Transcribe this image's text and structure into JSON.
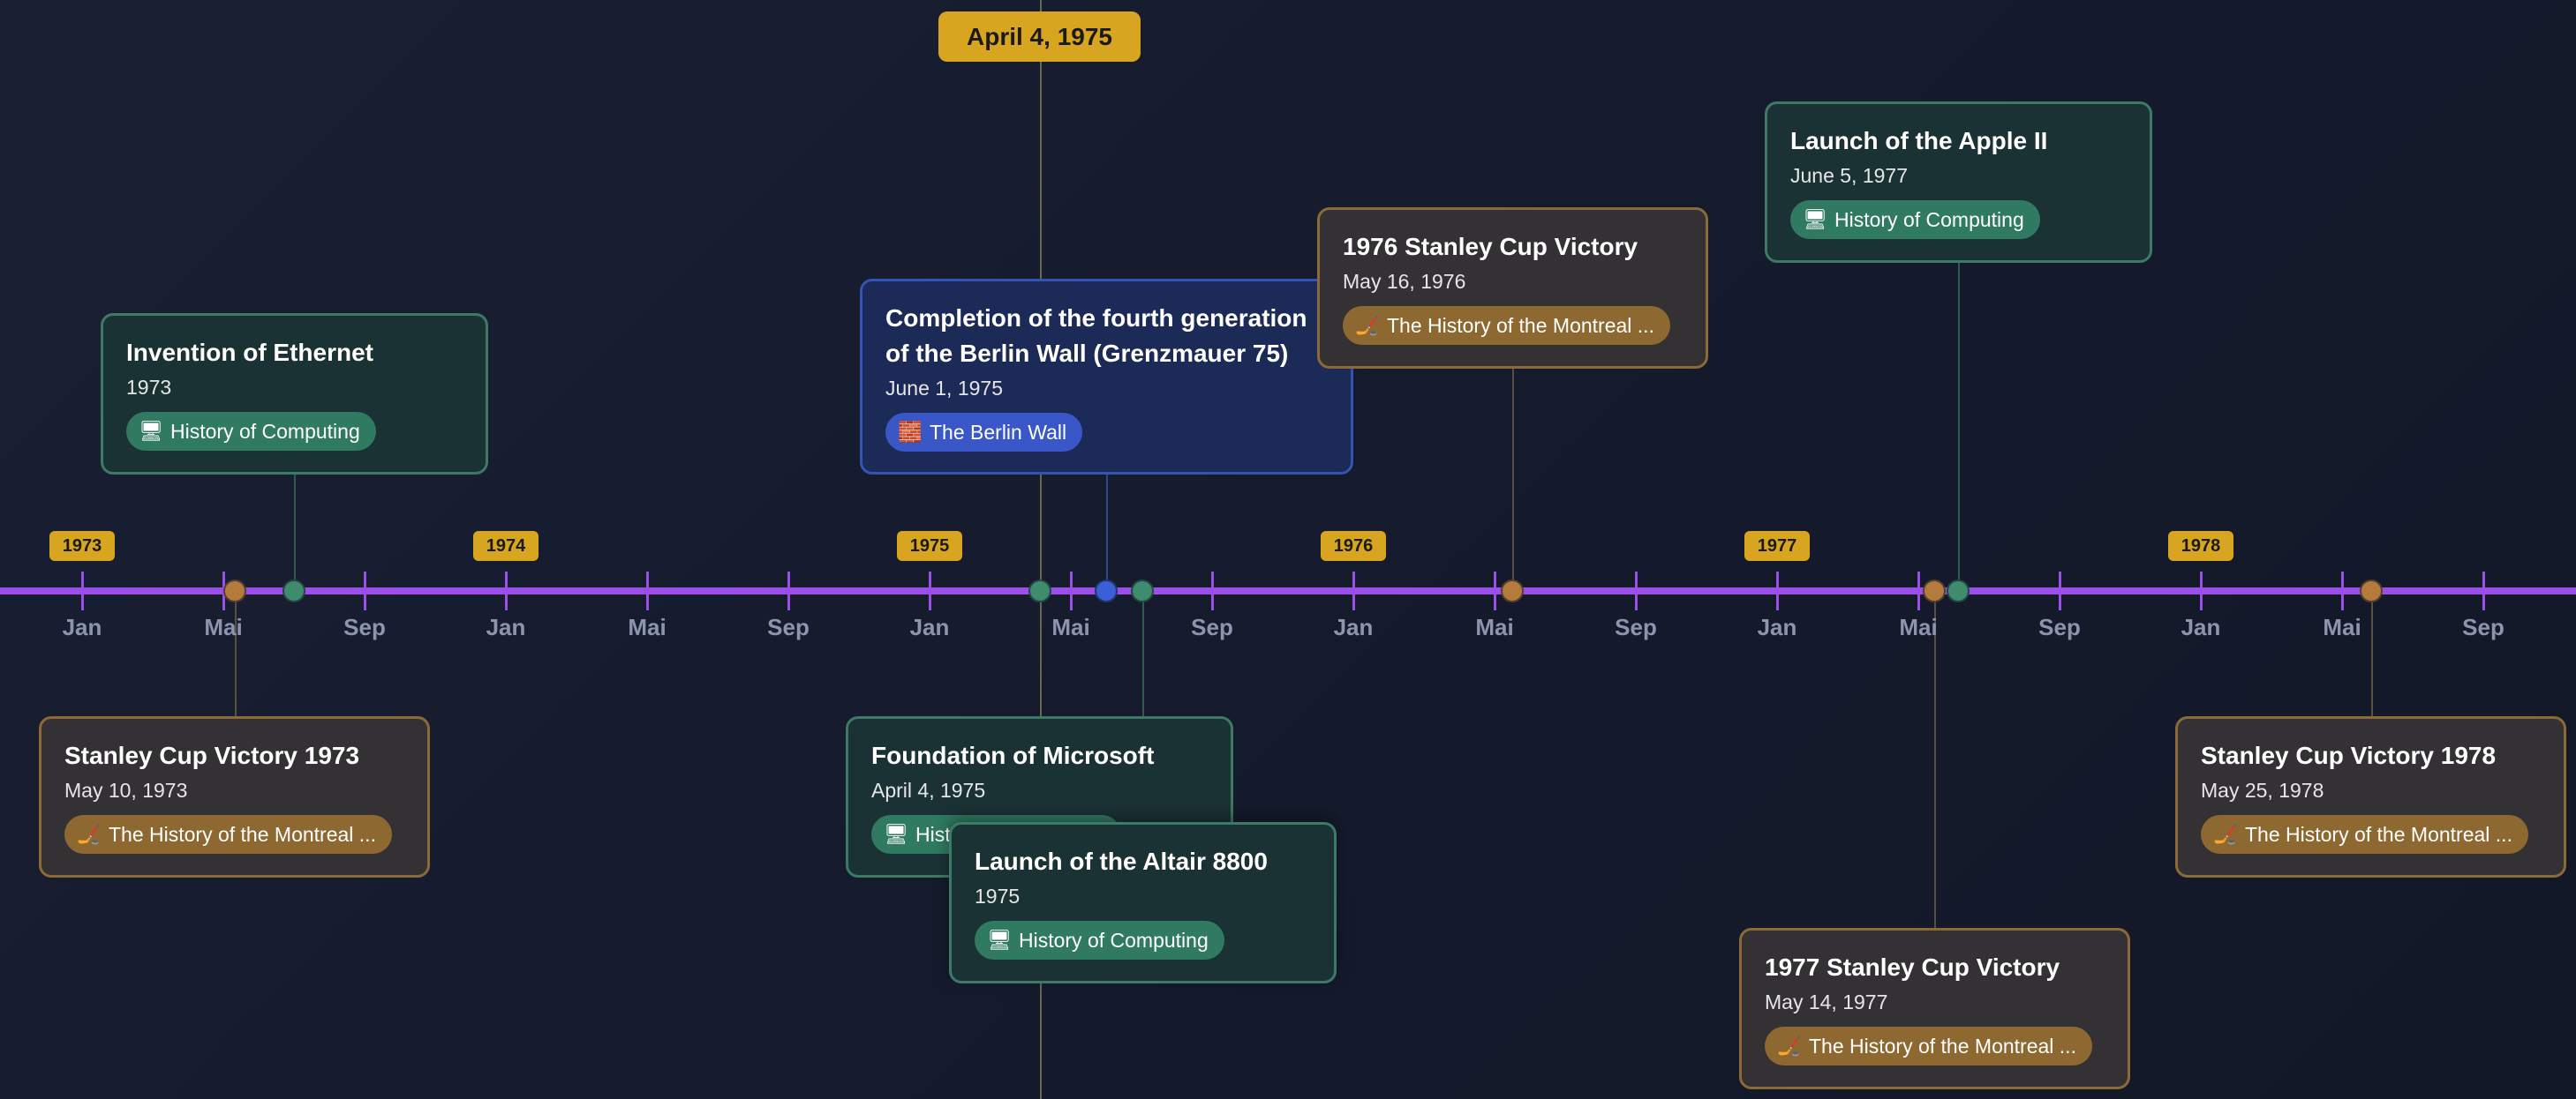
{
  "cursor": {
    "label": "April 4, 1975"
  },
  "years": [
    "1973",
    "1974",
    "1975",
    "1976",
    "1977",
    "1978"
  ],
  "months": [
    "Jan",
    "Mai",
    "Sep",
    "Jan",
    "Mai",
    "Sep",
    "Jan",
    "Mai",
    "Sep",
    "Jan",
    "Mai",
    "Sep",
    "Jan",
    "Mai",
    "Sep",
    "Jan",
    "Mai",
    "Sep"
  ],
  "categories": {
    "computing": {
      "label": "History of Computing",
      "icon": "computer-icon",
      "color": "#3e8c6d"
    },
    "hockey": {
      "label": "The History of the Montreal ...",
      "icon": "hockey-stick-icon",
      "color": "#b57b3d"
    },
    "wall": {
      "label": "The Berlin Wall",
      "icon": "brick-icon",
      "color": "#3a5fd6"
    }
  },
  "events": {
    "ethernet": {
      "title": "Invention of Ethernet",
      "date": "1973"
    },
    "berlin": {
      "title": "Completion of the fourth generation of the Berlin Wall (Grenzmauer 75)",
      "date": "June 1, 1975"
    },
    "cup1976": {
      "title": "1976 Stanley Cup Victory",
      "date": "May 16, 1976"
    },
    "apple": {
      "title": "Launch of the Apple II",
      "date": "June 5, 1977"
    },
    "cup1973": {
      "title": "Stanley Cup Victory 1973",
      "date": "May 10, 1973"
    },
    "microsoft": {
      "title": "Foundation of Microsoft",
      "date": "April 4, 1975"
    },
    "altair": {
      "title": "Launch of the Altair 8800",
      "date": "1975"
    },
    "cup1977": {
      "title": "1977 Stanley Cup Victory",
      "date": "May 14, 1977"
    },
    "cup1978": {
      "title": "Stanley Cup Victory 1978",
      "date": "May 25, 1978"
    }
  }
}
